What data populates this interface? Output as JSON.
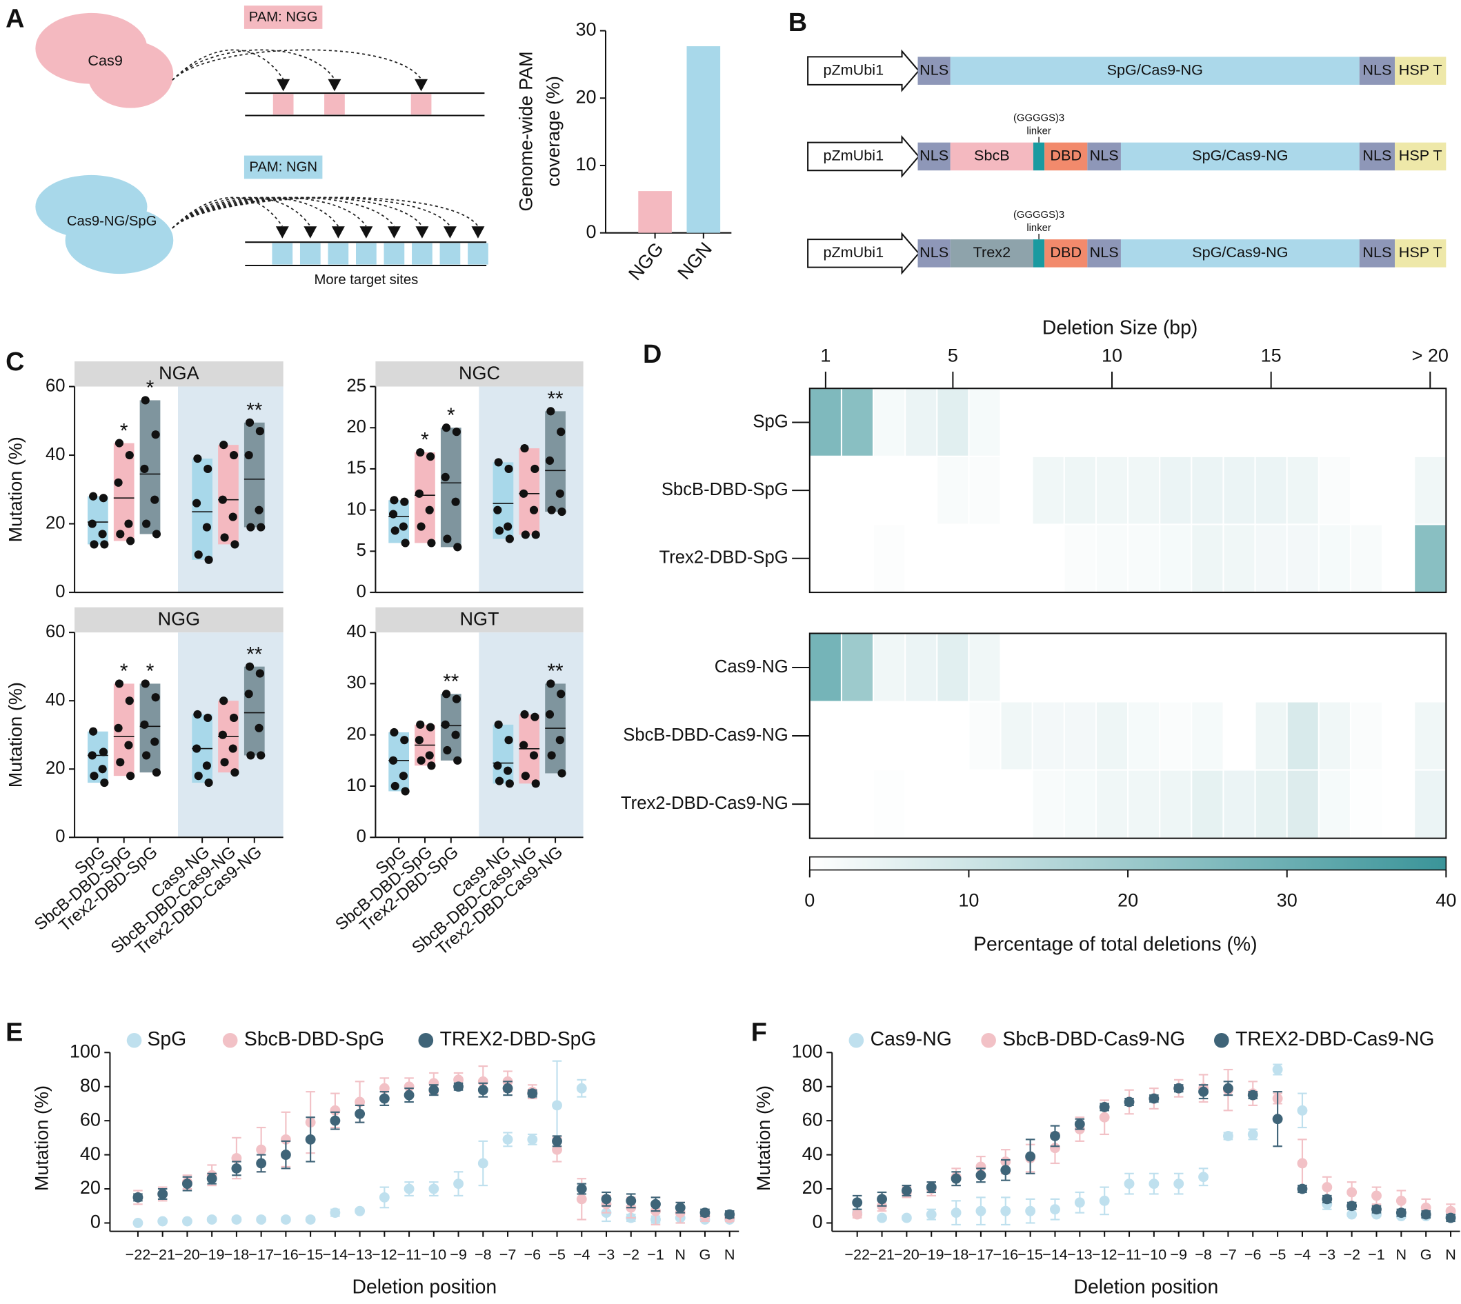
{
  "panel_labels": [
    "A",
    "B",
    "C",
    "D",
    "E",
    "F"
  ],
  "diagram_a": {
    "enzyme_1": "Cas9",
    "pam_1": "PAM: NGG",
    "enzyme_2": "Cas9-NG/SpG",
    "pam_2": "PAM: NGN",
    "note": "More target sites"
  },
  "diagram_b": {
    "linker_label": [
      "(GGGGS)3",
      "linker"
    ],
    "constructs": [
      [
        "pZmUbi1",
        "NLS",
        "SpG/Cas9-NG",
        "NLS",
        "HSP T"
      ],
      [
        "pZmUbi1",
        "NLS",
        "SbcB",
        "DBD",
        "NLS",
        "SpG/Cas9-NG",
        "NLS",
        "HSP T"
      ],
      [
        "pZmUbi1",
        "NLS",
        "Trex2",
        "DBD",
        "NLS",
        "SpG/Cas9-NG",
        "NLS",
        "HSP T"
      ]
    ]
  },
  "chart_data": [
    {
      "type": "bar",
      "ylabel": [
        "Genome-wide PAM",
        "coverage (%)"
      ],
      "categories": [
        "NGG",
        "NGN"
      ],
      "values": [
        6.2,
        27.7
      ],
      "colors": [
        "#f4b9c0",
        "#a8d8ea"
      ],
      "ylim": [
        0,
        30
      ],
      "yticks": [
        0,
        10,
        20,
        30
      ]
    },
    {
      "type": "facet-box",
      "ylabel": "Mutation (%)",
      "categories": [
        "SpG",
        "SbcB-DBD-SpG",
        "Trex2-DBD-SpG",
        "Cas9-NG",
        "SbcB-DBD-Cas9-NG",
        "Trex2-DBD-Cas9-NG"
      ],
      "colors": [
        "#a8d8ea",
        "#f4b9c0",
        "#7f959e",
        "#a8d8ea",
        "#f4b9c0",
        "#7f959e"
      ],
      "strip_color": "#d9d9d9",
      "shade_color": "#dce8f1",
      "facets": [
        {
          "title": "NGA",
          "ylim": [
            0,
            60
          ],
          "yticks": [
            0,
            20,
            40,
            60
          ],
          "groups": [
            {
              "points": [
                28,
                27.5,
                20,
                17,
                14,
                14
              ],
              "mean": 20.5,
              "sig": null
            },
            {
              "points": [
                43.5,
                40,
                32,
                20,
                17,
                15
              ],
              "mean": 27.5,
              "sig": "*"
            },
            {
              "points": [
                56,
                46,
                36,
                27,
                20,
                17
              ],
              "mean": 34.5,
              "sig": "*"
            },
            {
              "points": [
                39,
                36,
                26,
                19,
                11,
                9.5
              ],
              "mean": 23.5,
              "sig": null
            },
            {
              "points": [
                43,
                40,
                27,
                22,
                16,
                14
              ],
              "mean": 27,
              "sig": null
            },
            {
              "points": [
                49.5,
                47,
                40,
                24,
                19,
                19
              ],
              "mean": 33,
              "sig": "**"
            }
          ]
        },
        {
          "title": "NGC",
          "ylim": [
            0,
            25
          ],
          "yticks": [
            0,
            5,
            10,
            15,
            20,
            25
          ],
          "groups": [
            {
              "points": [
                11.2,
                11,
                9.5,
                8,
                7.5,
                6
              ],
              "mean": 9.2,
              "sig": null
            },
            {
              "points": [
                17,
                16.5,
                12,
                10,
                8,
                6
              ],
              "mean": 11.8,
              "sig": "*"
            },
            {
              "points": [
                20,
                19.5,
                14,
                11,
                6.5,
                5.5
              ],
              "mean": 13.3,
              "sig": "*"
            },
            {
              "points": [
                15.8,
                15,
                10,
                8,
                7.5,
                6.5
              ],
              "mean": 10.8,
              "sig": null
            },
            {
              "points": [
                17.5,
                15,
                12,
                10,
                7,
                7
              ],
              "mean": 12,
              "sig": null
            },
            {
              "points": [
                22,
                19.5,
                16,
                12,
                10,
                9.8
              ],
              "mean": 14.8,
              "sig": "**"
            }
          ]
        },
        {
          "title": "NGG",
          "ylim": [
            0,
            60
          ],
          "yticks": [
            0,
            20,
            40,
            60
          ],
          "groups": [
            {
              "points": [
                31,
                25,
                24,
                20,
                18,
                16
              ],
              "mean": 24,
              "sig": null
            },
            {
              "points": [
                45,
                40,
                32,
                27,
                22,
                18
              ],
              "mean": 29.5,
              "sig": "*"
            },
            {
              "points": [
                45,
                41,
                33,
                28,
                24,
                19
              ],
              "mean": 32.5,
              "sig": "*"
            },
            {
              "points": [
                36,
                35,
                26,
                21,
                18,
                16
              ],
              "mean": 26,
              "sig": null
            },
            {
              "points": [
                40,
                35,
                30,
                26,
                22,
                19
              ],
              "mean": 29.5,
              "sig": null
            },
            {
              "points": [
                50,
                48,
                42,
                32,
                24,
                24
              ],
              "mean": 36.5,
              "sig": "**"
            }
          ]
        },
        {
          "title": "NGT",
          "ylim": [
            0,
            40
          ],
          "yticks": [
            0,
            10,
            20,
            30,
            40
          ],
          "groups": [
            {
              "points": [
                20.5,
                19,
                15,
                12,
                10,
                9
              ],
              "mean": 15,
              "sig": null
            },
            {
              "points": [
                22,
                21.5,
                19,
                16,
                15,
                14
              ],
              "mean": 18,
              "sig": null
            },
            {
              "points": [
                28,
                27,
                22,
                20,
                17,
                15
              ],
              "mean": 21.8,
              "sig": "**"
            },
            {
              "points": [
                22,
                19,
                14,
                13,
                11,
                10.5
              ],
              "mean": 14.5,
              "sig": null
            },
            {
              "points": [
                24,
                23.5,
                18,
                16,
                12,
                10.5
              ],
              "mean": 17.3,
              "sig": null
            },
            {
              "points": [
                30,
                28,
                24,
                19,
                16,
                12.5
              ],
              "mean": 21.3,
              "sig": "**"
            }
          ]
        }
      ]
    },
    {
      "type": "heatmap",
      "xlabel": "Deletion Size (bp)",
      "columns": [
        1,
        null,
        null,
        null,
        5,
        null,
        null,
        null,
        null,
        10,
        null,
        null,
        null,
        null,
        15,
        null,
        null,
        null,
        null,
        "> 20"
      ],
      "color_range": [
        "#ffffff",
        "#3a9499"
      ],
      "blocks": [
        {
          "rows": [
            "SpG",
            "SbcB-DBD-SpG",
            "Trex2-DBD-SpG"
          ],
          "values": [
            [
              26,
              24,
              2,
              4,
              6,
              2,
              0,
              0,
              0,
              0,
              0,
              0,
              0,
              0,
              0,
              0,
              0,
              0,
              0,
              0
            ],
            [
              0,
              0,
              0,
              0,
              1.5,
              1,
              0,
              3,
              3.5,
              3,
              3,
              4,
              4,
              4,
              4,
              3.5,
              1,
              0,
              0,
              3
            ],
            [
              0,
              0,
              0.7,
              0,
              0,
              0,
              0,
              0,
              1,
              1.5,
              1.5,
              2,
              3.5,
              3,
              2.5,
              2.5,
              2,
              1.5,
              0,
              24
            ]
          ]
        },
        {
          "rows": [
            "Cas9-NG",
            "SbcB-DBD-Cas9-NG",
            "Trex2-DBD-Cas9-NG"
          ],
          "values": [
            [
              28,
              20,
              3,
              4,
              6,
              3,
              0,
              0,
              0,
              0,
              0,
              0,
              0,
              0,
              0,
              0,
              0,
              0,
              0,
              0
            ],
            [
              0,
              0,
              0,
              0,
              0,
              1,
              3,
              2.5,
              2.5,
              3.5,
              2,
              1,
              2,
              0,
              3.5,
              8,
              3,
              1,
              0,
              3
            ],
            [
              0,
              0,
              0.5,
              0,
              0,
              0,
              0,
              1.5,
              2,
              3,
              3,
              3.5,
              5,
              4,
              5,
              7,
              2,
              0.5,
              0,
              4
            ]
          ]
        }
      ],
      "colorbar": {
        "label": "Percentage of total deletions (%)",
        "lim": [
          0,
          40
        ],
        "ticks": [
          0,
          10,
          20,
          30,
          40
        ]
      }
    },
    {
      "type": "errorbar",
      "xlabel": "Deletion position",
      "ylabel": "Mutation (%)",
      "categories": [
        "−22",
        "−21",
        "−20",
        "−19",
        "−18",
        "−17",
        "−16",
        "−15",
        "−14",
        "−13",
        "−12",
        "−11",
        "−10",
        "−9",
        "−8",
        "−7",
        "−6",
        "−5",
        "−4",
        "−3",
        "−2",
        "−1",
        "N",
        "G",
        "N"
      ],
      "highlight_categories": [
        "N",
        "G"
      ],
      "highlight_color": "#e8251f",
      "ylim": [
        0,
        100
      ],
      "yticks": [
        0,
        20,
        40,
        60,
        80,
        100
      ],
      "series": [
        {
          "name": "SpG",
          "color": "#bfe0ee",
          "values": [
            0,
            1,
            1,
            2,
            2,
            2,
            2,
            2,
            6,
            7,
            15,
            20,
            20,
            23,
            35,
            49,
            49,
            69,
            79,
            6,
            3,
            2,
            3,
            2,
            2
          ],
          "errors": [
            0,
            0,
            0,
            1,
            1,
            1,
            1,
            1,
            2,
            1,
            6,
            4,
            4,
            7,
            13,
            4,
            3,
            26,
            5,
            5,
            2,
            2,
            3,
            1,
            1
          ]
        },
        {
          "name": "SbcB-DBD-SpG",
          "color": "#f2c1c6",
          "values": [
            15,
            17,
            24,
            28,
            38,
            43,
            49,
            59,
            66,
            71,
            79,
            80,
            82,
            84,
            83,
            83,
            77,
            43,
            14,
            11,
            9,
            7,
            6,
            4,
            3
          ],
          "errors": [
            4,
            4,
            4,
            6,
            12,
            13,
            16,
            18,
            10,
            12,
            6,
            5,
            6,
            4,
            9,
            6,
            4,
            7,
            12,
            5,
            6,
            8,
            6,
            3,
            2
          ]
        },
        {
          "name": "TREX2-DBD-SpG",
          "color": "#3f6478",
          "values": [
            15,
            17,
            23,
            26,
            32,
            35,
            40,
            49,
            60,
            64,
            73,
            75,
            78,
            80,
            78,
            79,
            76,
            48,
            20,
            14,
            13,
            11,
            9,
            6,
            5
          ],
          "errors": [
            2,
            3,
            4,
            3,
            4,
            5,
            8,
            13,
            5,
            5,
            4,
            4,
            3,
            2,
            4,
            4,
            2,
            3,
            3,
            4,
            4,
            4,
            3,
            2,
            2
          ]
        }
      ]
    },
    {
      "type": "errorbar",
      "xlabel": "Deletion position",
      "ylabel": "Mutation (%)",
      "categories": [
        "−22",
        "−21",
        "−20",
        "−19",
        "−18",
        "−17",
        "−16",
        "−15",
        "−14",
        "−13",
        "−12",
        "−11",
        "−10",
        "−9",
        "−8",
        "−7",
        "−6",
        "−5",
        "−4",
        "−3",
        "−2",
        "−1",
        "N",
        "G",
        "N"
      ],
      "highlight_categories": [
        "N",
        "G"
      ],
      "highlight_color": "#e8251f",
      "ylim": [
        0,
        100
      ],
      "yticks": [
        0,
        20,
        40,
        60,
        80,
        100
      ],
      "series": [
        {
          "name": "Cas9-NG",
          "color": "#bfe0ee",
          "values": [
            6,
            3,
            3,
            5,
            6,
            7,
            7,
            7,
            8,
            12,
            13,
            23,
            23,
            23,
            27,
            51,
            52,
            90,
            66,
            11,
            5,
            5,
            4,
            4,
            4
          ],
          "errors": [
            1,
            1,
            1,
            3,
            7,
            8,
            8,
            7,
            6,
            6,
            8,
            6,
            6,
            6,
            5,
            2,
            3,
            3,
            10,
            3,
            1,
            1,
            1,
            1,
            1
          ]
        },
        {
          "name": "SbcB-DBD-Cas9-NG",
          "color": "#f2c1c6",
          "values": [
            5,
            10,
            18,
            20,
            27,
            33,
            36,
            38,
            44,
            55,
            62,
            71,
            73,
            79,
            79,
            78,
            76,
            73,
            35,
            21,
            18,
            16,
            13,
            9,
            7
          ],
          "errors": [
            2,
            3,
            3,
            4,
            5,
            6,
            7,
            8,
            9,
            7,
            10,
            7,
            6,
            5,
            8,
            12,
            7,
            3,
            14,
            6,
            6,
            5,
            6,
            5,
            4
          ]
        },
        {
          "name": "TREX2-DBD-Cas9-NG",
          "color": "#3f6478",
          "values": [
            12,
            14,
            19,
            21,
            26,
            28,
            31,
            39,
            51,
            58,
            68,
            71,
            73,
            79,
            77,
            79,
            75,
            61,
            20,
            14,
            10,
            8,
            6,
            5,
            3
          ],
          "errors": [
            4,
            4,
            3,
            3,
            4,
            4,
            6,
            10,
            6,
            3,
            2,
            2,
            2,
            2,
            4,
            4,
            2,
            16,
            2,
            2,
            2,
            2,
            2,
            2,
            2
          ]
        }
      ]
    }
  ]
}
